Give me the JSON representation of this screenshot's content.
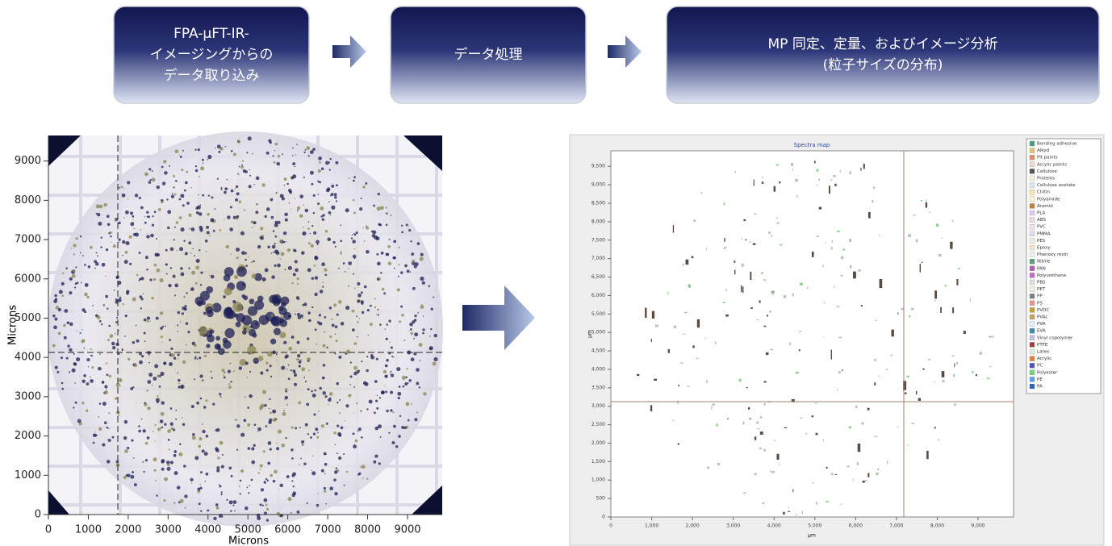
{
  "steps": [
    {
      "lines": [
        "FPA-µFT-IR-",
        "イメージングからの",
        "データ取り込み"
      ]
    },
    {
      "lines": [
        "データ処理"
      ]
    },
    {
      "lines": [
        "MP 同定、定量、およびイメージ分析",
        "(粒子サイズの分布)"
      ]
    }
  ],
  "left_image": {
    "xlabel": "Microns",
    "ylabel": "Microns",
    "xlim": [
      0,
      9870
    ],
    "ylim": [
      0,
      9650
    ],
    "xticks": [
      0,
      1000,
      2000,
      3000,
      4000,
      5000,
      6000,
      7000,
      8000,
      9000
    ],
    "yticks": [
      0,
      1000,
      2000,
      3000,
      4000,
      5000,
      6000,
      7000,
      8000,
      9000
    ]
  },
  "right_image": {
    "title": "Spectra map",
    "xlabel": "µm",
    "ylabel": "µm",
    "xlim": [
      0,
      9870
    ],
    "ylim": [
      0,
      9920
    ],
    "xticks": [
      0,
      {
        "value": 1000,
        "label": "1,000"
      },
      {
        "value": 2000,
        "label": "2,000"
      },
      {
        "value": 3000,
        "label": "3,000"
      },
      {
        "value": 4000,
        "label": "4,000"
      },
      {
        "value": 5000,
        "label": "5,000"
      },
      {
        "value": 6000,
        "label": "6,000"
      },
      {
        "value": 7000,
        "label": "7,000"
      },
      {
        "value": 8000,
        "label": "8,000"
      },
      {
        "value": 9000,
        "label": "9,000"
      }
    ],
    "yticks": [
      0,
      500,
      {
        "value": 1000,
        "label": "1,000"
      },
      {
        "value": 1500,
        "label": "1,500"
      },
      {
        "value": 2000,
        "label": "2,000"
      },
      {
        "value": 2500,
        "label": "2,500"
      },
      {
        "value": 3000,
        "label": "3,000"
      },
      {
        "value": 3500,
        "label": "3,500"
      },
      {
        "value": 4000,
        "label": "4,000"
      },
      {
        "value": 4500,
        "label": "4,500"
      },
      {
        "value": 5000,
        "label": "5,000"
      },
      {
        "value": 5500,
        "label": "5,500"
      },
      {
        "value": 6000,
        "label": "6,000"
      },
      {
        "value": 6500,
        "label": "6,500"
      },
      {
        "value": 7000,
        "label": "7,000"
      },
      {
        "value": 7500,
        "label": "7,500"
      },
      {
        "value": 8000,
        "label": "8,000"
      },
      {
        "value": 8500,
        "label": "8,500"
      },
      {
        "value": 9000,
        "label": "9,000"
      },
      {
        "value": 9500,
        "label": "9,500"
      }
    ],
    "legend": [
      {
        "name": "Bonding adhesive",
        "color": "#4a9a8a"
      },
      {
        "name": "Alkyd",
        "color": "#e6c070"
      },
      {
        "name": "Pit paints",
        "color": "#e08a70"
      },
      {
        "name": "Acrylic paints",
        "color": "#f3d9c9"
      },
      {
        "name": "Cellulose",
        "color": "#555555"
      },
      {
        "name": "Proteins",
        "color": "#f6f0d8"
      },
      {
        "name": "Cellulose acetate",
        "color": "#d9e8f0"
      },
      {
        "name": "Chitin",
        "color": "#f3e4b0"
      },
      {
        "name": "Polyamide",
        "color": "#fff3d0"
      },
      {
        "name": "Aramid",
        "color": "#c08040"
      },
      {
        "name": "PLA",
        "color": "#d8d0ef"
      },
      {
        "name": "ABS",
        "color": "#f0d8d8"
      },
      {
        "name": "PVC",
        "color": "#f0e0f0"
      },
      {
        "name": "PMMA",
        "color": "#dde"
      },
      {
        "name": "PES",
        "color": "#eed"
      },
      {
        "name": "Epoxy",
        "color": "#f9e3c9"
      },
      {
        "name": "Phenoxy resin",
        "color": "#f0f0f0"
      },
      {
        "name": "Nitrile",
        "color": "#5aa070"
      },
      {
        "name": "PAN",
        "color": "#b060b0"
      },
      {
        "name": "Polyurethane",
        "color": "#c86ac0"
      },
      {
        "name": "PBS",
        "color": "#e0e0e0"
      },
      {
        "name": "PET",
        "color": "#f0f0e0"
      },
      {
        "name": "PP",
        "color": "#808080"
      },
      {
        "name": "PS",
        "color": "#ef9090"
      },
      {
        "name": "PVDC",
        "color": "#c8a030"
      },
      {
        "name": "PVAc",
        "color": "#d0a060"
      },
      {
        "name": "PVA",
        "color": "#e0f0ff"
      },
      {
        "name": "EVA",
        "color": "#3a8ab0"
      },
      {
        "name": "Vinyl copolymer",
        "color": "#c0c0e0"
      },
      {
        "name": "PTFE",
        "color": "#a04040"
      },
      {
        "name": "Latex",
        "color": "#d8f0d8"
      },
      {
        "name": "Acrylic",
        "color": "#e08040"
      },
      {
        "name": "PC",
        "color": "#5050c0"
      },
      {
        "name": "Polyester",
        "color": "#7ad07a"
      },
      {
        "name": "PE",
        "color": "#60a0e0"
      },
      {
        "name": "PA",
        "color": "#3060c0"
      }
    ]
  }
}
